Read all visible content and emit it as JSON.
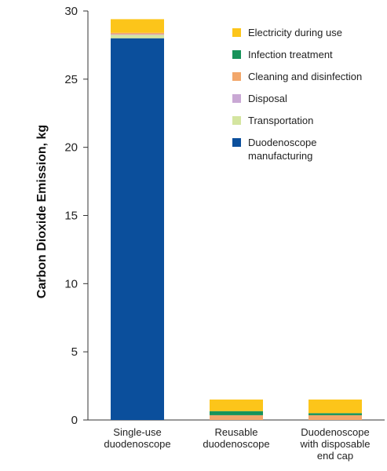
{
  "chart_data": {
    "type": "bar",
    "stacked": true,
    "ylabel": "Carbon Dioxide Emission, kg",
    "ylim": [
      0,
      30
    ],
    "yticks": [
      0,
      5,
      10,
      15,
      20,
      25,
      30
    ],
    "grid": false,
    "legend_position": "top-right",
    "categories": [
      [
        "Single-use",
        "duodenoscope"
      ],
      [
        "Reusable",
        "duodenoscope"
      ],
      [
        "Duodenoscope",
        "with disposable",
        "end cap"
      ]
    ],
    "series": [
      {
        "name": [
          "Duodenoscope",
          "manufacturing"
        ],
        "color": "#0b4f9c",
        "values": [
          28.0,
          0.0,
          0.0
        ]
      },
      {
        "name": [
          "Transportation"
        ],
        "color": "#d4e5a0",
        "values": [
          0.25,
          0.0,
          0.0
        ]
      },
      {
        "name": [
          "Disposal"
        ],
        "color": "#c9a8d4",
        "values": [
          0.05,
          0.0,
          0.0
        ]
      },
      {
        "name": [
          "Cleaning and disinfection"
        ],
        "color": "#f2a76b",
        "values": [
          0.1,
          0.35,
          0.35
        ]
      },
      {
        "name": [
          "Infection treatment"
        ],
        "color": "#17935a",
        "values": [
          0.0,
          0.3,
          0.15
        ]
      },
      {
        "name": [
          "Electricity during use"
        ],
        "color": "#fcc51a",
        "values": [
          1.0,
          0.85,
          1.0
        ]
      }
    ],
    "legend_order": [
      5,
      4,
      3,
      2,
      1,
      0
    ]
  }
}
